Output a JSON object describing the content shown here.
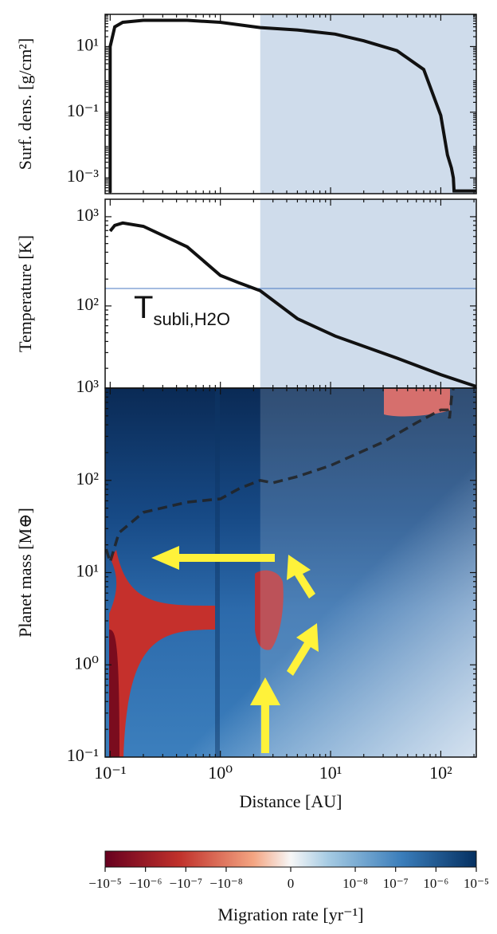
{
  "chart_data": [
    {
      "type": "line",
      "ylabel": "Surf. dens. [g/cm²]",
      "log_x": true,
      "log_y": true,
      "xlim": [
        0.09,
        210
      ],
      "ylim": [
        0.00033,
        96
      ],
      "yticks": [
        {
          "value": 10,
          "label": "10¹"
        },
        {
          "value": 0.1,
          "label": "10⁻¹"
        },
        {
          "value": 0.001,
          "label": "10⁻³"
        }
      ],
      "span": [
        2.3,
        210
      ],
      "span_color": "#cfdceb",
      "x": [
        0.1,
        0.1,
        0.11,
        0.13,
        0.2,
        0.5,
        1,
        2.3,
        5,
        11,
        20,
        40,
        70,
        100,
        115,
        125,
        130,
        132,
        210
      ],
      "series": [
        {
          "color": "#111111",
          "values": [
            0.00035,
            10,
            40,
            55,
            63,
            63,
            55,
            38,
            32,
            24,
            15,
            7.5,
            2,
            0.08,
            0.005,
            0.002,
            0.001,
            0.0004,
            0.0004
          ]
        }
      ]
    },
    {
      "type": "line",
      "ylabel": "Temperature [K]",
      "log_x": true,
      "log_y": true,
      "xlim": [
        0.09,
        210
      ],
      "ylim": [
        12,
        1570
      ],
      "yticks": [
        {
          "value": 1000,
          "label": "10³"
        },
        {
          "value": 100,
          "label": "10²"
        }
      ],
      "hline": 157,
      "hline_color": "#4a78c0",
      "annotation": "T",
      "annotation_sub": "subli,H2O",
      "x": [
        0.1,
        0.11,
        0.13,
        0.2,
        0.5,
        1,
        1.5,
        2.3,
        5,
        11,
        40,
        100,
        210
      ],
      "series": [
        {
          "color": "#111111",
          "values": [
            690,
            800,
            850,
            780,
            460,
            220,
            180,
            148,
            72,
            46,
            26,
            17,
            12.5
          ]
        }
      ]
    },
    {
      "type": "heatmap",
      "ylabel": "Planet mass [M⊕]",
      "xlabel": "Distance [AU]",
      "log_x": true,
      "log_y": true,
      "xlim": [
        0.09,
        210
      ],
      "ylim": [
        0.1,
        1000
      ],
      "xticks": [
        {
          "value": 0.1,
          "label": "10⁻¹"
        },
        {
          "value": 1,
          "label": "10⁰"
        },
        {
          "value": 10,
          "label": "10¹"
        },
        {
          "value": 100,
          "label": "10²"
        }
      ],
      "yticks": [
        {
          "value": 1000,
          "label": "10³"
        },
        {
          "value": 100,
          "label": "10²"
        },
        {
          "value": 10,
          "label": "10¹"
        },
        {
          "value": 1,
          "label": "10⁰"
        },
        {
          "value": 0.1,
          "label": "10⁻¹"
        }
      ],
      "x": [
        0.092,
        0.1,
        0.12,
        0.2,
        0.5,
        1,
        1.5,
        2.3,
        3,
        5,
        10,
        30,
        60,
        100,
        115,
        120,
        125,
        130
      ],
      "series": [
        {
          "color": "#222222",
          "dash": true,
          "values": [
            18,
            13,
            27,
            45,
            58,
            63,
            82,
            100,
            94,
            110,
            145,
            260,
            420,
            580,
            580,
            470,
            780,
            1000
          ]
        }
      ],
      "colorbar": {
        "label": "Migration rate [yr⁻¹]",
        "scale": "symlog",
        "clim": [
          -1e-05,
          1e-05
        ],
        "ticks": [
          {
            "value": -1e-05,
            "label": "−10⁻⁵"
          },
          {
            "value": -1e-06,
            "label": "−10⁻⁶"
          },
          {
            "value": -1e-07,
            "label": "−10⁻⁷"
          },
          {
            "value": -1e-08,
            "label": "−10⁻⁸"
          },
          0,
          {
            "value": 1e-08,
            "label": "10⁻⁸"
          },
          {
            "value": 1e-07,
            "label": "10⁻⁷"
          },
          {
            "value": 1e-06,
            "label": "10⁻⁶"
          },
          {
            "value": 1e-05,
            "label": "10⁻⁵"
          }
        ]
      }
    }
  ]
}
